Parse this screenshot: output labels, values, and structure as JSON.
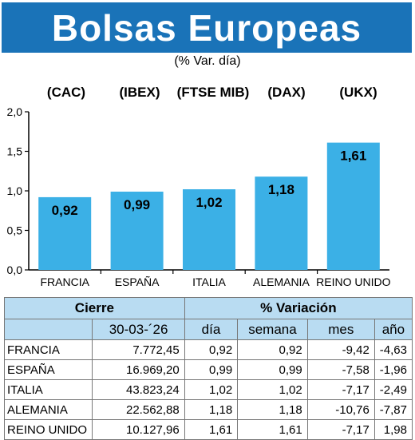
{
  "title": "Bolsas Europeas",
  "subtitle": "(% Var. día)",
  "colors": {
    "banner": "#1a73b8",
    "bar": "#3bb0e6",
    "table_header": "#b9dcf2"
  },
  "chart_data": {
    "type": "bar",
    "categories": [
      "FRANCIA",
      "ESPAÑA",
      "ITALIA",
      "ALEMANIA",
      "REINO UNIDO"
    ],
    "indices": [
      "(CAC)",
      "(IBEX)",
      "(FTSE MIB)",
      "(DAX)",
      "(UKX)"
    ],
    "values": [
      0.92,
      0.99,
      1.02,
      1.18,
      1.61
    ],
    "value_labels": [
      "0,92",
      "0,99",
      "1,02",
      "1,18",
      "1,61"
    ],
    "ylim": [
      0,
      2
    ],
    "yticks": [
      0,
      0.5,
      1,
      1.5,
      2
    ],
    "ytick_labels": [
      "0,0",
      "0,5",
      "1,0",
      "1,5",
      "2,0"
    ],
    "grid": false
  },
  "table": {
    "group_headers": {
      "cierre": "Cierre",
      "variacion": "% Variación"
    },
    "column_headers": [
      "30-03-´26",
      "día",
      "semana",
      "mes",
      "año"
    ],
    "rows": [
      {
        "pais": "FRANCIA",
        "cierre": "7.772,45",
        "dia": "0,92",
        "semana": "0,92",
        "mes": "-9,42",
        "anio": "-4,63"
      },
      {
        "pais": "ESPAÑA",
        "cierre": "16.969,20",
        "dia": "0,99",
        "semana": "0,99",
        "mes": "-7,58",
        "anio": "-1,96"
      },
      {
        "pais": "ITALIA",
        "cierre": "43.823,24",
        "dia": "1,02",
        "semana": "1,02",
        "mes": "-7,17",
        "anio": "-2,49"
      },
      {
        "pais": "ALEMANIA",
        "cierre": "22.562,88",
        "dia": "1,18",
        "semana": "1,18",
        "mes": "-10,76",
        "anio": "-7,87"
      },
      {
        "pais": "REINO UNIDO",
        "cierre": "10.127,96",
        "dia": "1,61",
        "semana": "1,61",
        "mes": "-7,17",
        "anio": "1,98"
      }
    ]
  }
}
